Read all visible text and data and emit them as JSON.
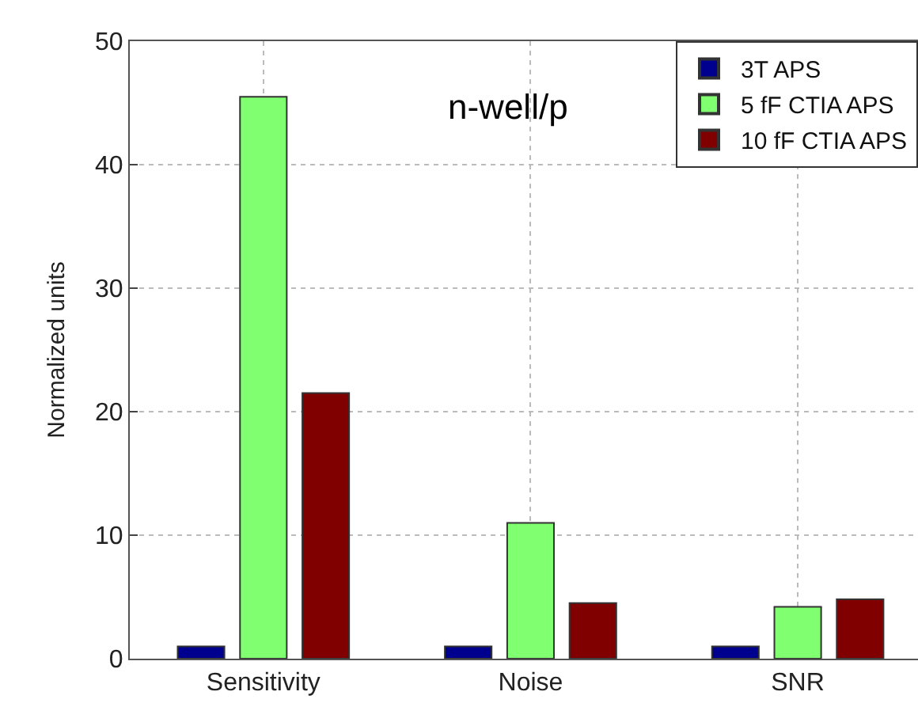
{
  "chart_data": {
    "type": "bar",
    "ylabel": "Normalized units",
    "categories": [
      "Sensitivity",
      "Noise",
      "SNR"
    ],
    "series": [
      {
        "name": "3T APS",
        "color": "#00008f",
        "values": [
          1,
          1,
          1
        ]
      },
      {
        "name": "5 fF CTIA APS",
        "color": "#80ff70",
        "values": [
          45.5,
          11,
          4.2
        ]
      },
      {
        "name": "10 fF CTIA APS",
        "color": "#800000",
        "values": [
          21.5,
          4.5,
          4.8
        ]
      }
    ],
    "ylim": [
      0,
      50
    ],
    "yticks": [
      0,
      10,
      20,
      30,
      40,
      50
    ],
    "grid": true,
    "legend": "top right",
    "annotations": [
      "n-well/p"
    ]
  }
}
